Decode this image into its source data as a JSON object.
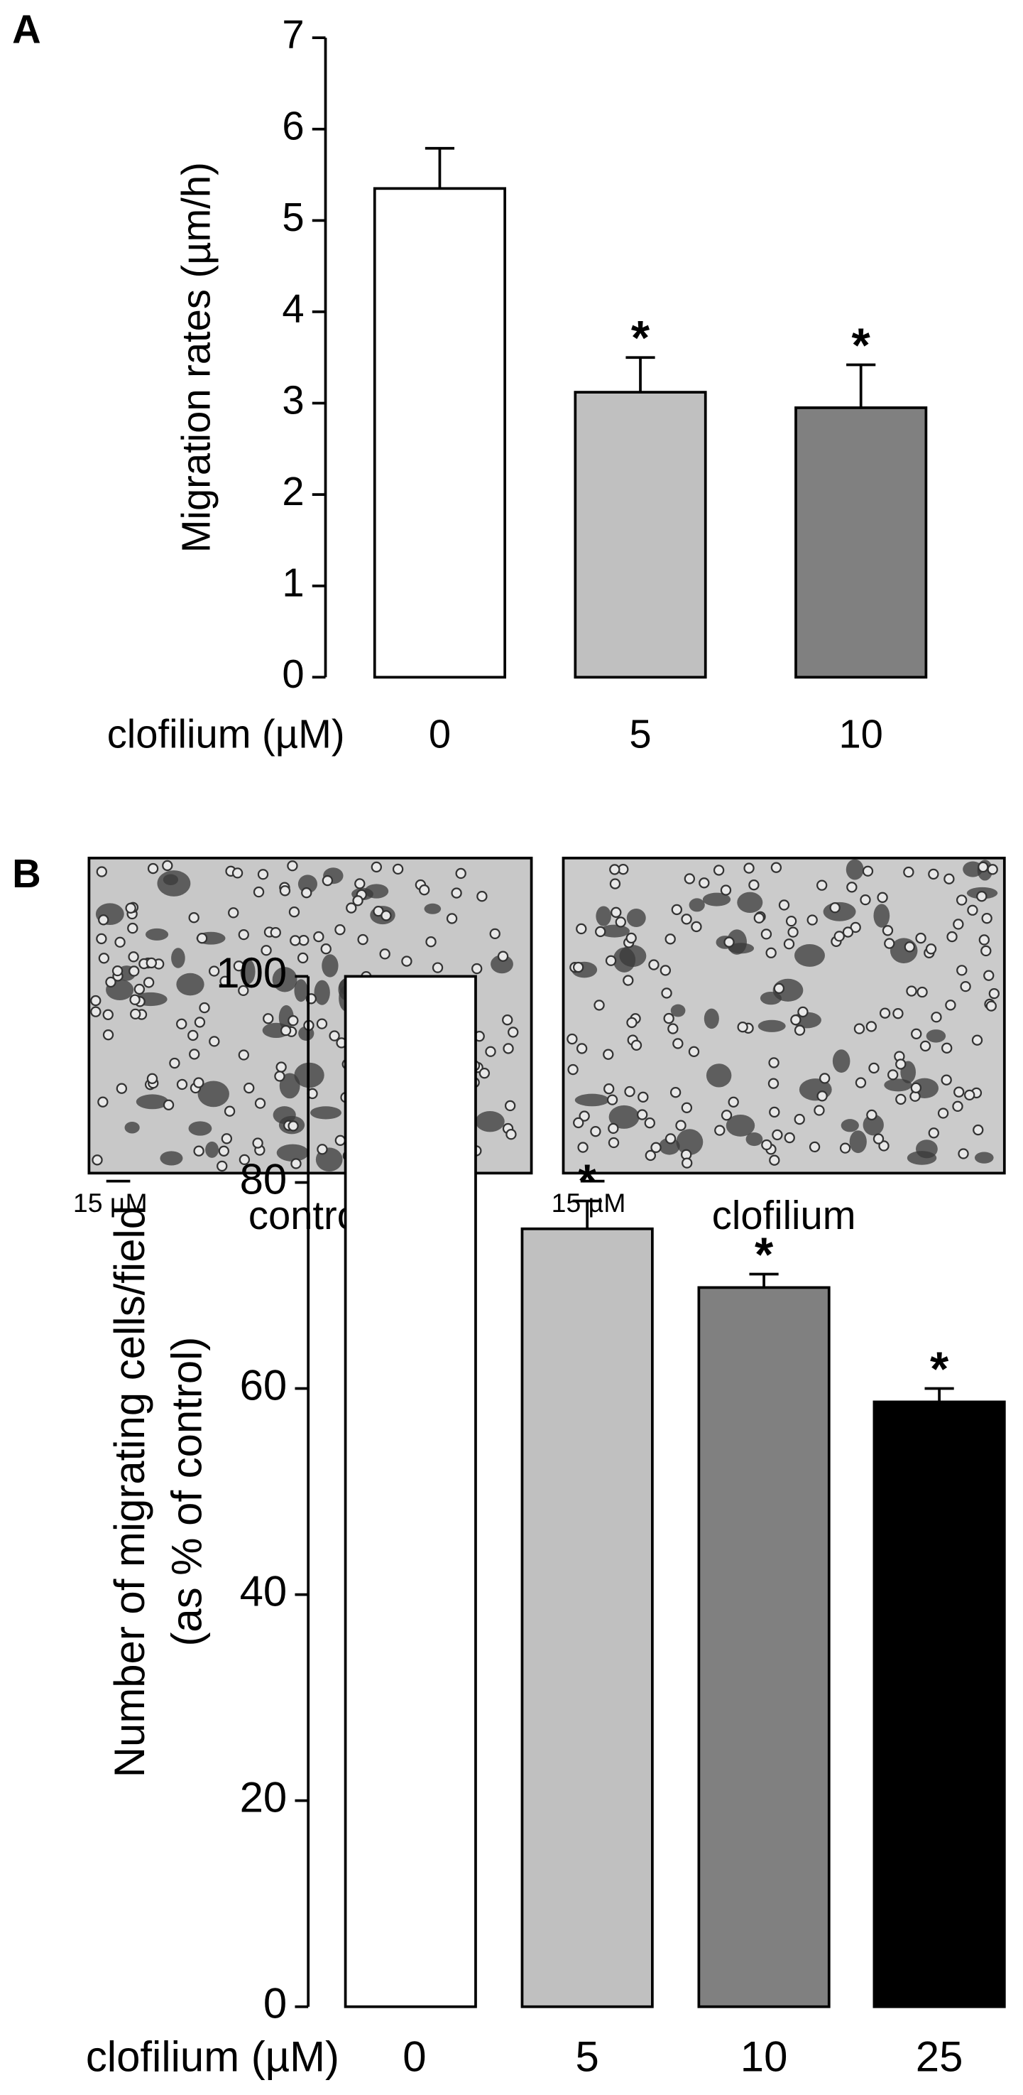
{
  "chart_data": [
    {
      "type": "bar",
      "panel_label": "A",
      "ylabel": [
        "Migration rates (µm/h)"
      ],
      "xlabel": "clofilium (µM)",
      "categories": [
        "0",
        "5",
        "10"
      ],
      "values": [
        5.35,
        3.12,
        2.95
      ],
      "errors": [
        0.44,
        0.38,
        0.47
      ],
      "significance": [
        null,
        "*",
        "*"
      ],
      "colors": [
        "#ffffff",
        "#c0c0c0",
        "#808080"
      ],
      "ylim": [
        0,
        7
      ],
      "yticks": [
        0,
        1,
        2,
        3,
        4,
        5,
        6,
        7
      ]
    },
    {
      "type": "bar",
      "panel_label": "B",
      "ylabel": [
        "Number of migrating cells/field",
        "(as % of control)"
      ],
      "xlabel": "clofilium (µM)",
      "categories": [
        "0",
        "5",
        "10",
        "25"
      ],
      "values": [
        100,
        75.5,
        69.8,
        58.7
      ],
      "errors": [
        0,
        2.7,
        1.3,
        1.3
      ],
      "significance": [
        null,
        "*",
        "*",
        "*"
      ],
      "colors": [
        "#ffffff",
        "#c0c0c0",
        "#808080",
        "#000000"
      ],
      "ylim": [
        0,
        100
      ],
      "yticks": [
        0,
        20,
        40,
        60,
        80,
        100
      ]
    }
  ],
  "micrographs": [
    {
      "caption": "control",
      "scale_bar": "15 µM"
    },
    {
      "caption": "clofilium",
      "scale_bar": "15 µM"
    }
  ]
}
